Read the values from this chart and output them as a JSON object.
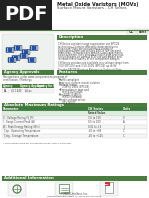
{
  "title": "Metal Oxide Varistors (MOVs)",
  "subtitle": "Surface Mount Varistors - CH Series",
  "bg_color": "#ffffff",
  "header_black": "#1a1a1a",
  "green_color": "#4a7c3f",
  "dark_green": "#2d5a27",
  "table_green": "#3a7a3a",
  "light_green": "#c8e6c9",
  "pdf_bg": "#222222",
  "pdf_text": "#ffffff",
  "blue_component": "#2255aa",
  "gray_line": "#cccccc",
  "text_gray": "#444444",
  "light_gray": "#f5f5f5"
}
